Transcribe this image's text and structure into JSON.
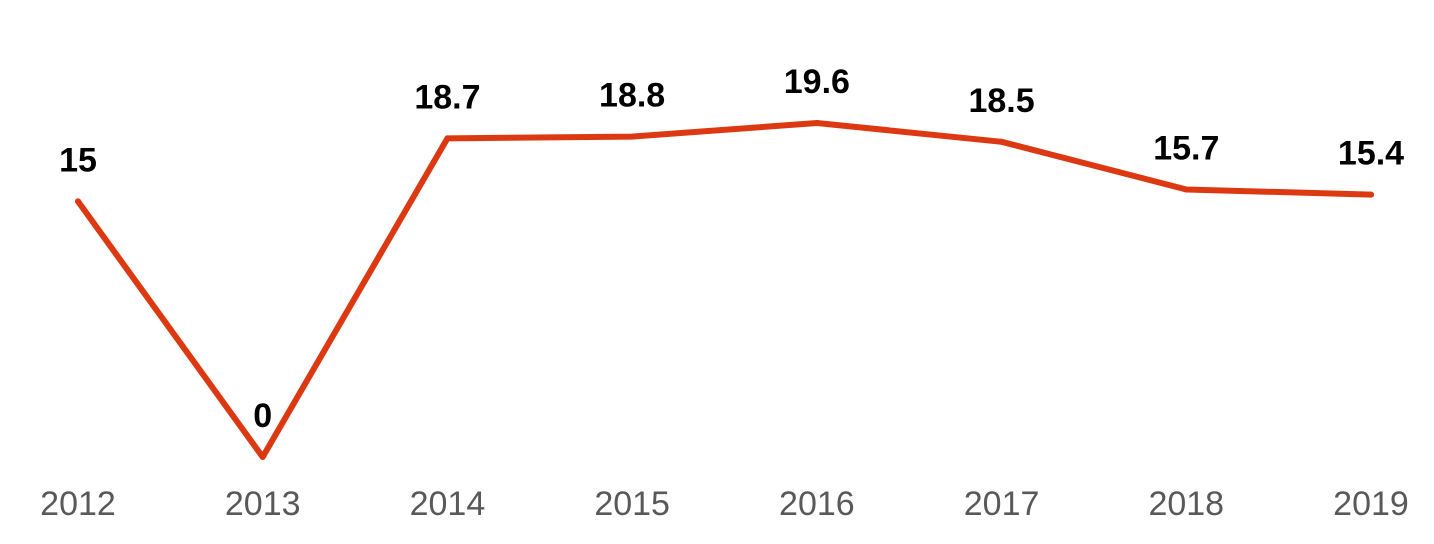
{
  "chart_data": {
    "type": "line",
    "categories": [
      "2012",
      "2013",
      "2014",
      "2015",
      "2016",
      "2017",
      "2018",
      "2019"
    ],
    "series": [
      {
        "values": [
          15,
          0,
          18.7,
          18.8,
          19.6,
          18.5,
          15.7,
          15.4
        ],
        "color": "#dc3912"
      }
    ],
    "data_labels": [
      "15",
      "0",
      "18.7",
      "18.8",
      "19.6",
      "18.5",
      "15.7",
      "15.4"
    ],
    "ylim": [
      0,
      25
    ],
    "grid": false,
    "legend": "none",
    "title": "",
    "xlabel": "",
    "ylabel": ""
  }
}
